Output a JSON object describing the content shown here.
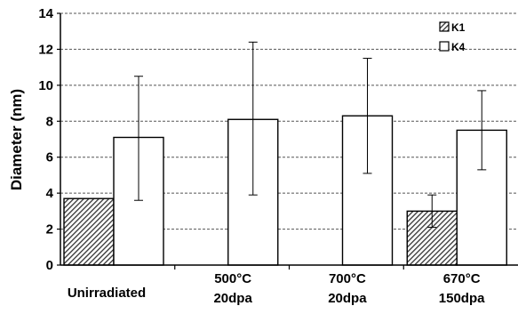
{
  "chart_data": {
    "type": "bar",
    "title": "",
    "xlabel": "",
    "ylabel": "Diameter (nm)",
    "ylim": [
      0,
      14
    ],
    "yticks": [
      0,
      2,
      4,
      6,
      8,
      10,
      12,
      14
    ],
    "grid": "horizontal dashed",
    "legend_position": "top-right",
    "categories": [
      [
        "Unirradiated"
      ],
      [
        "500°C",
        "20dpa"
      ],
      [
        "700°C",
        "20dpa"
      ],
      [
        "670°C",
        "150dpa"
      ]
    ],
    "series": [
      {
        "name": "K1",
        "pattern": "hatched",
        "values": [
          3.7,
          null,
          null,
          3.0
        ],
        "error": [
          null,
          null,
          null,
          [
            2.1,
            3.9
          ]
        ]
      },
      {
        "name": "K4",
        "pattern": "open",
        "values": [
          7.1,
          8.1,
          8.3,
          7.5
        ],
        "error": [
          [
            3.6,
            10.5
          ],
          [
            3.9,
            12.4
          ],
          [
            5.1,
            11.5
          ],
          [
            5.3,
            9.7
          ]
        ]
      }
    ]
  }
}
